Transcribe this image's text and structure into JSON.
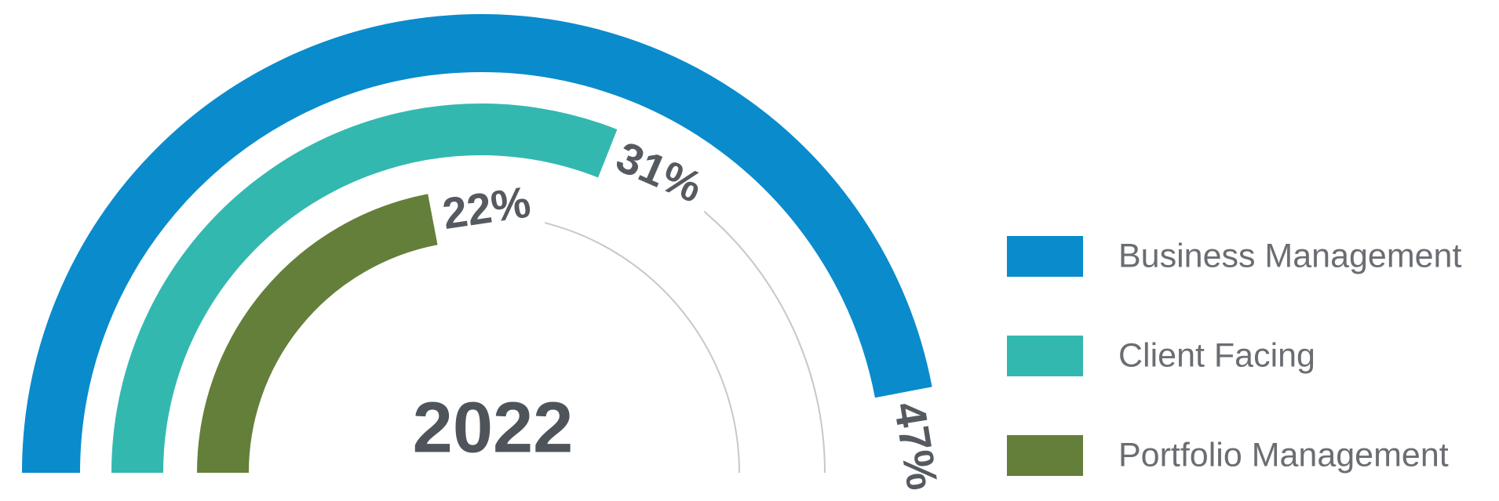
{
  "chart_data": {
    "type": "radial_bar",
    "center_label": "2022",
    "categories": [
      "Business Management",
      "Client Facing",
      "Portfolio Management"
    ],
    "values": [
      47,
      31,
      22
    ],
    "value_labels": [
      "47%",
      "31%",
      "22%"
    ],
    "colors": [
      "#0a8bcc",
      "#33b8b0",
      "#637f3a"
    ],
    "xlim": [
      0,
      100
    ],
    "legend": "right"
  }
}
